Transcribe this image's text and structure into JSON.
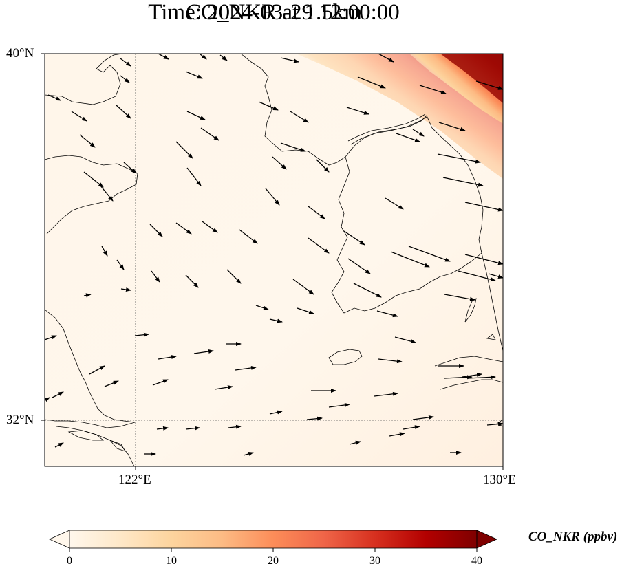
{
  "title_line1": "CO_NKR at 1.5km",
  "title_line2": "Time: 2024-03-29 12:00:00",
  "lat_labels": [
    "40°N",
    "32°N"
  ],
  "lon_labels": [
    "122°E",
    "130°E"
  ],
  "map_extent": {
    "lon_min": 120,
    "lon_max": 130,
    "lat_min": 31,
    "lat_max": 40
  },
  "gridlines": {
    "lon": [
      122
    ],
    "lat": [
      32
    ],
    "style": "dotted"
  },
  "colormap": {
    "name": "OrRd",
    "stops": [
      "#fff7ec",
      "#fee8c8",
      "#fdd49e",
      "#fdbb84",
      "#fc8d59",
      "#ef6548",
      "#d7301f",
      "#b30000",
      "#7f0000"
    ],
    "extend": "both"
  },
  "colorbar": {
    "ticks": [
      "0",
      "10",
      "20",
      "30",
      "40"
    ],
    "label": "CO_NKR (ppbv)",
    "min": 0,
    "max": 40
  },
  "field_summary": {
    "background_ppbv": 0,
    "plume_location": "top-right corner",
    "plume_max_ppbv": 40
  },
  "wind_vectors": "southeasterly-to-easterly flow, arrows pointing east-southeast across domain"
}
